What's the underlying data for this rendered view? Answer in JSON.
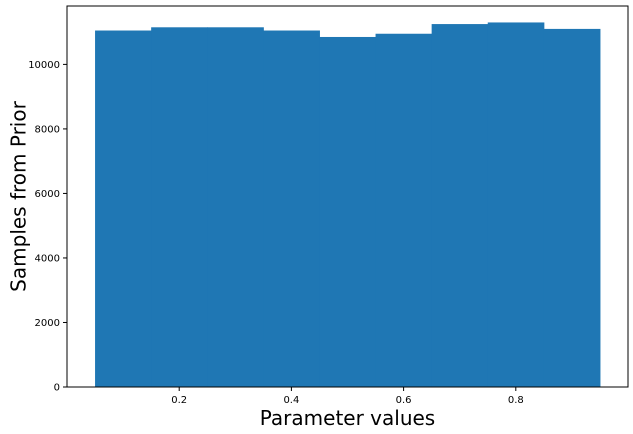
{
  "chart_data": {
    "type": "bar",
    "title": "",
    "xlabel": "Parameter values",
    "ylabel": "Samples from Prior",
    "xlim": [
      0.0,
      1.0
    ],
    "ylim": [
      0,
      11810
    ],
    "bin_edges": [
      0.05,
      0.15,
      0.25,
      0.35,
      0.45,
      0.55,
      0.65,
      0.75,
      0.85,
      0.95
    ],
    "values": [
      11050,
      11150,
      11150,
      11050,
      10850,
      10950,
      11250,
      11300,
      11100
    ],
    "x_ticks": [
      0.2,
      0.4,
      0.6,
      0.8
    ],
    "x_tick_labels": [
      "0.2",
      "0.4",
      "0.6",
      "0.8"
    ],
    "y_ticks": [
      0,
      2000,
      4000,
      6000,
      8000,
      10000
    ],
    "y_tick_labels": [
      "0",
      "2000",
      "4000",
      "6000",
      "8000",
      "10000"
    ],
    "grid": false,
    "bar_color": "#1f77b4"
  }
}
